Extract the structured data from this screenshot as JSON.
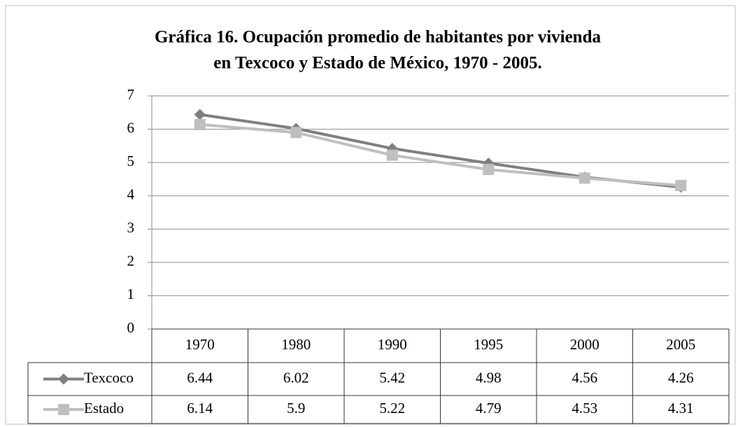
{
  "chart_data": {
    "type": "line",
    "title": "Gráfica 16. Ocupación promedio de habitantes por vivienda",
    "subtitle": "en Texcoco y Estado de México, 1970 - 2005.",
    "categories": [
      "1970",
      "1980",
      "1990",
      "1995",
      "2000",
      "2005"
    ],
    "series": [
      {
        "name": "Texcoco",
        "color": "#7f7f7f",
        "values": [
          6.44,
          6.02,
          5.42,
          4.98,
          4.56,
          4.26
        ]
      },
      {
        "name": "Estado",
        "color": "#bfbfbf",
        "values": [
          6.14,
          5.9,
          5.22,
          4.79,
          4.53,
          4.31
        ]
      }
    ],
    "ylim": [
      0,
      7
    ],
    "yticks": [
      0,
      1,
      2,
      3,
      4,
      5,
      6,
      7
    ],
    "grid": true
  }
}
